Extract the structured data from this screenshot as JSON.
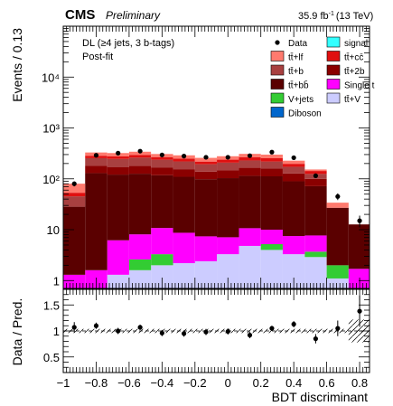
{
  "header": {
    "experiment": "CMS",
    "status": "Preliminary",
    "lumi": "35.9 fb",
    "lumi_sup": "-1",
    "energy": "(13 TeV)"
  },
  "annotation": {
    "line1": "DL (≥4 jets, 3 b-tags)",
    "line2": "Post-fit"
  },
  "legend": [
    {
      "label": "Data",
      "kind": "marker",
      "color": "#000000"
    },
    {
      "label": "signal",
      "kind": "box",
      "color": "#33ffff"
    },
    {
      "label": "tt̄+lf",
      "kind": "box",
      "color": "#ff7a6e"
    },
    {
      "label": "tt̄+cc̄",
      "kind": "box",
      "color": "#e01010"
    },
    {
      "label": "tt̄+b",
      "kind": "box",
      "color": "#a84040"
    },
    {
      "label": "tt̄+2b",
      "kind": "box",
      "color": "#8a0000"
    },
    {
      "label": "tt̄+bb̄",
      "kind": "box",
      "color": "#5a0000"
    },
    {
      "label": "Single t",
      "kind": "box",
      "color": "#ff00ff"
    },
    {
      "label": "V+jets",
      "kind": "box",
      "color": "#33cc33"
    },
    {
      "label": "tt̄+V",
      "kind": "box",
      "color": "#ccccff"
    },
    {
      "label": "Diboson",
      "kind": "box",
      "color": "#0066cc"
    }
  ],
  "chart_data": [
    {
      "type": "bar",
      "subtype": "stacked-histogram",
      "ylabel": "Events / 0.13",
      "log_y": true,
      "ylim": [
        0.7,
        100000
      ],
      "xlim": [
        -1,
        0.86
      ],
      "y_ticks": [
        1,
        10,
        100,
        1000,
        10000
      ],
      "y_tick_labels": [
        "1",
        "10",
        "10²",
        "10³",
        "10⁴"
      ],
      "bin_edges": [
        -1.0,
        -0.867,
        -0.733,
        -0.6,
        -0.467,
        -0.333,
        -0.2,
        -0.067,
        0.067,
        0.2,
        0.333,
        0.467,
        0.6,
        0.733,
        0.867
      ],
      "stack_order": [
        "tt̄+V",
        "V+jets",
        "Single t",
        "tt̄+bb̄",
        "tt̄+2b",
        "tt̄+b",
        "tt̄+cc̄",
        "tt̄+lf"
      ],
      "series": [
        {
          "name": "tt̄+V",
          "color": "#ccccff",
          "values": [
            0.7,
            0.7,
            1.3,
            1.6,
            2.0,
            2.2,
            2.4,
            3.3,
            4.8,
            4.0,
            3.3,
            2.9,
            1.1,
            0.7
          ]
        },
        {
          "name": "V+jets",
          "color": "#33cc33",
          "values": [
            0.0,
            0.0,
            0.0,
            1.0,
            1.3,
            0.0,
            0.0,
            0.0,
            0.0,
            1.2,
            0.0,
            0.8,
            0.9,
            0.0
          ]
        },
        {
          "name": "Single t",
          "color": "#ff00ff",
          "values": [
            0.6,
            0.9,
            4.9,
            5.5,
            7.5,
            6.5,
            5.0,
            3.8,
            5.9,
            4.8,
            4.2,
            4.0,
            0.0,
            1.0
          ]
        },
        {
          "name": "tt̄+bb̄",
          "color": "#5a0000",
          "values": [
            27,
            128,
            115,
            118,
            107,
            101,
            91,
            96,
            104,
            102,
            82,
            64,
            25,
            11
          ]
        },
        {
          "name": "tt̄+2b",
          "color": "#8a0000",
          "values": [
            0,
            50,
            50,
            55,
            50,
            45,
            40,
            45,
            50,
            47,
            38,
            28,
            0,
            0
          ]
        },
        {
          "name": "tt̄+b",
          "color": "#a84040",
          "values": [
            17,
            75,
            75,
            80,
            70,
            65,
            55,
            60,
            65,
            60,
            45,
            25,
            0,
            0
          ]
        },
        {
          "name": "tt̄+cc̄",
          "color": "#e01010",
          "values": [
            8,
            30,
            30,
            35,
            30,
            30,
            25,
            30,
            35,
            35,
            25,
            18,
            0,
            0
          ]
        },
        {
          "name": "tt̄+lf",
          "color": "#ff7a6e",
          "values": [
            27,
            45,
            45,
            45,
            40,
            40,
            40,
            40,
            45,
            45,
            30,
            10,
            7,
            0
          ]
        }
      ],
      "data_points": {
        "name": "Data",
        "x": [
          -0.933,
          -0.8,
          -0.667,
          -0.533,
          -0.4,
          -0.267,
          -0.133,
          0.0,
          0.133,
          0.267,
          0.4,
          0.533,
          0.667,
          0.8
        ],
        "y": [
          80,
          290,
          320,
          350,
          295,
          280,
          265,
          265,
          285,
          335,
          260,
          115,
          45,
          15
        ]
      }
    },
    {
      "type": "scatter",
      "subtype": "ratio",
      "xlabel": "BDT discriminant",
      "ylabel": "Data / Pred.",
      "ylim": [
        0.2,
        1.8
      ],
      "xlim": [
        -1,
        0.86
      ],
      "y_ticks": [
        0.5,
        1,
        1.5
      ],
      "y_tick_labels": [
        "0.5",
        "1",
        "1.5"
      ],
      "x_ticks": [
        -1,
        -0.8,
        -0.6,
        -0.4,
        -0.2,
        0,
        0.2,
        0.4,
        0.6,
        0.8
      ],
      "x_tick_labels": [
        "−1",
        "−0.8",
        "−0.6",
        "−0.4",
        "−0.2",
        "0",
        "0.2",
        "0.4",
        "0.6",
        "0.8"
      ],
      "x": [
        -0.933,
        -0.8,
        -0.667,
        -0.533,
        -0.4,
        -0.267,
        -0.133,
        0.0,
        0.133,
        0.267,
        0.4,
        0.533,
        0.667,
        0.8
      ],
      "y": [
        1.07,
        1.1,
        1.0,
        1.07,
        0.96,
        0.95,
        0.98,
        0.99,
        0.92,
        1.05,
        1.13,
        0.85,
        1.05,
        1.38
      ],
      "errors": [
        0.1,
        0.06,
        0.06,
        0.05,
        0.06,
        0.06,
        0.06,
        0.06,
        0.06,
        0.05,
        0.06,
        0.09,
        0.15,
        0.3
      ]
    }
  ]
}
